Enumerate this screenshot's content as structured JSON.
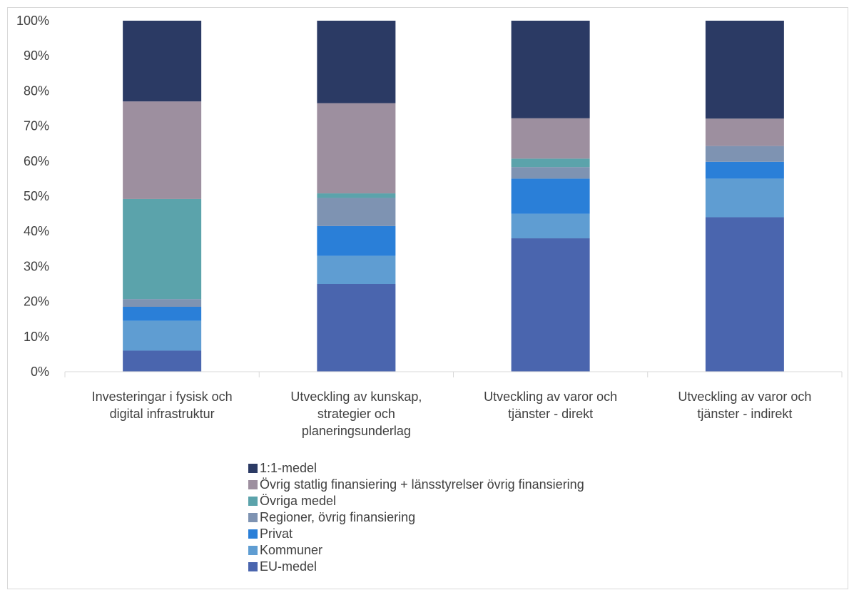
{
  "chart_data": {
    "type": "bar",
    "stacked": true,
    "percent_stacked": true,
    "categories": [
      [
        "Investeringar i fysisk och",
        "digital infrastruktur"
      ],
      [
        "Utveckling av kunskap,",
        "strategier och",
        "planeringsunderlag"
      ],
      [
        "Utveckling av varor och",
        "tjänster - direkt"
      ],
      [
        "Utveckling av varor och",
        "tjänster - indirekt"
      ]
    ],
    "series": [
      {
        "name": "EU-medel",
        "color": "#4a65ae",
        "values": [
          6,
          25,
          38,
          44
        ]
      },
      {
        "name": "Kommuner",
        "color": "#5f9dd2",
        "values": [
          8.5,
          8,
          7,
          11
        ]
      },
      {
        "name": "Privat",
        "color": "#2a7fd8",
        "values": [
          4,
          8.5,
          10,
          4.8
        ]
      },
      {
        "name": "Regioner, övrig finansiering",
        "color": "#7e93b2",
        "values": [
          2.2,
          8,
          3.3,
          4.5
        ]
      },
      {
        "name": "Övriga medel",
        "color": "#5ba3ab",
        "values": [
          28.5,
          1.3,
          2.4,
          0
        ]
      },
      {
        "name": "Övrig statlig finansiering + länsstyrelser övrig finansiering",
        "color": "#9d8f9f",
        "values": [
          27.8,
          25.7,
          11.5,
          7.8
        ]
      },
      {
        "name": "1:1-medel",
        "color": "#2b3a64",
        "values": [
          23,
          23.5,
          27.8,
          27.9
        ]
      }
    ],
    "yticks": [
      "0%",
      "10%",
      "20%",
      "30%",
      "40%",
      "50%",
      "60%",
      "70%",
      "80%",
      "90%",
      "100%"
    ],
    "ylim": [
      0,
      100
    ],
    "grid": false,
    "legend_position": "bottom",
    "legend_order": [
      "1:1-medel",
      "Övrig statlig finansiering + länsstyrelser övrig finansiering",
      "Övriga medel",
      "Regioner, övrig finansiering",
      "Privat",
      "Kommuner",
      "EU-medel"
    ],
    "title": "",
    "xlabel": "",
    "ylabel": ""
  }
}
